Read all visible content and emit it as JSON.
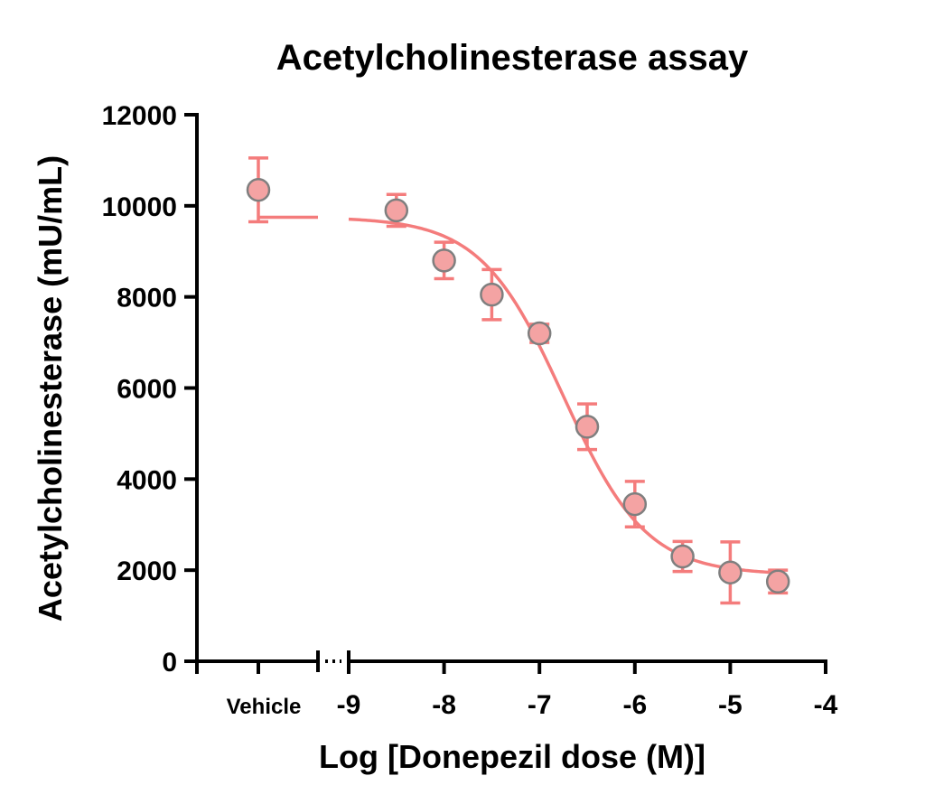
{
  "chart_data": {
    "type": "scatter",
    "title": "Acetylcholinesterase assay",
    "xlabel": "Log [Donepezil dose (M)]",
    "ylabel": "Acetylcholinesterase (mU/mL)",
    "ylim": [
      0,
      12000
    ],
    "y_ticks": [
      0,
      2000,
      4000,
      6000,
      8000,
      10000,
      12000
    ],
    "y_tick_labels": [
      "0",
      "2000",
      "4000",
      "6000",
      "8000",
      "10000",
      "12000"
    ],
    "xlim": [
      -9,
      -4
    ],
    "x_ticks": [
      -9,
      -8,
      -7,
      -6,
      -5,
      -4
    ],
    "x_tick_labels": [
      "-9",
      "-8",
      "-7",
      "-6",
      "-5",
      "-4"
    ],
    "axis_break": true,
    "grid": false,
    "vehicle": {
      "label": "Vehicle",
      "y": 10350,
      "err_low": 700,
      "err_high": 700
    },
    "points": [
      {
        "x": -8.5,
        "y": 9900,
        "err_low": 350,
        "err_high": 350
      },
      {
        "x": -8.0,
        "y": 8800,
        "err_low": 400,
        "err_high": 400
      },
      {
        "x": -7.5,
        "y": 8050,
        "err_low": 550,
        "err_high": 550
      },
      {
        "x": -7.0,
        "y": 7200,
        "err_low": 200,
        "err_high": 200
      },
      {
        "x": -6.5,
        "y": 5150,
        "err_low": 500,
        "err_high": 500
      },
      {
        "x": -6.0,
        "y": 3450,
        "err_low": 500,
        "err_high": 500
      },
      {
        "x": -5.5,
        "y": 2300,
        "err_low": 330,
        "err_high": 330
      },
      {
        "x": -5.0,
        "y": 1950,
        "err_low": 670,
        "err_high": 670
      },
      {
        "x": -4.5,
        "y": 1750,
        "err_low": 250,
        "err_high": 250
      }
    ],
    "fit": {
      "top": 9750,
      "bottom": 1900,
      "log_ic50": -6.75,
      "hill_slope": -1.0
    },
    "colors": {
      "marker_fill": "#F4A3A3",
      "marker_stroke": "#7F7F7F",
      "fit_line": "#F47C7C",
      "error_bar": "#F47C7C"
    }
  }
}
